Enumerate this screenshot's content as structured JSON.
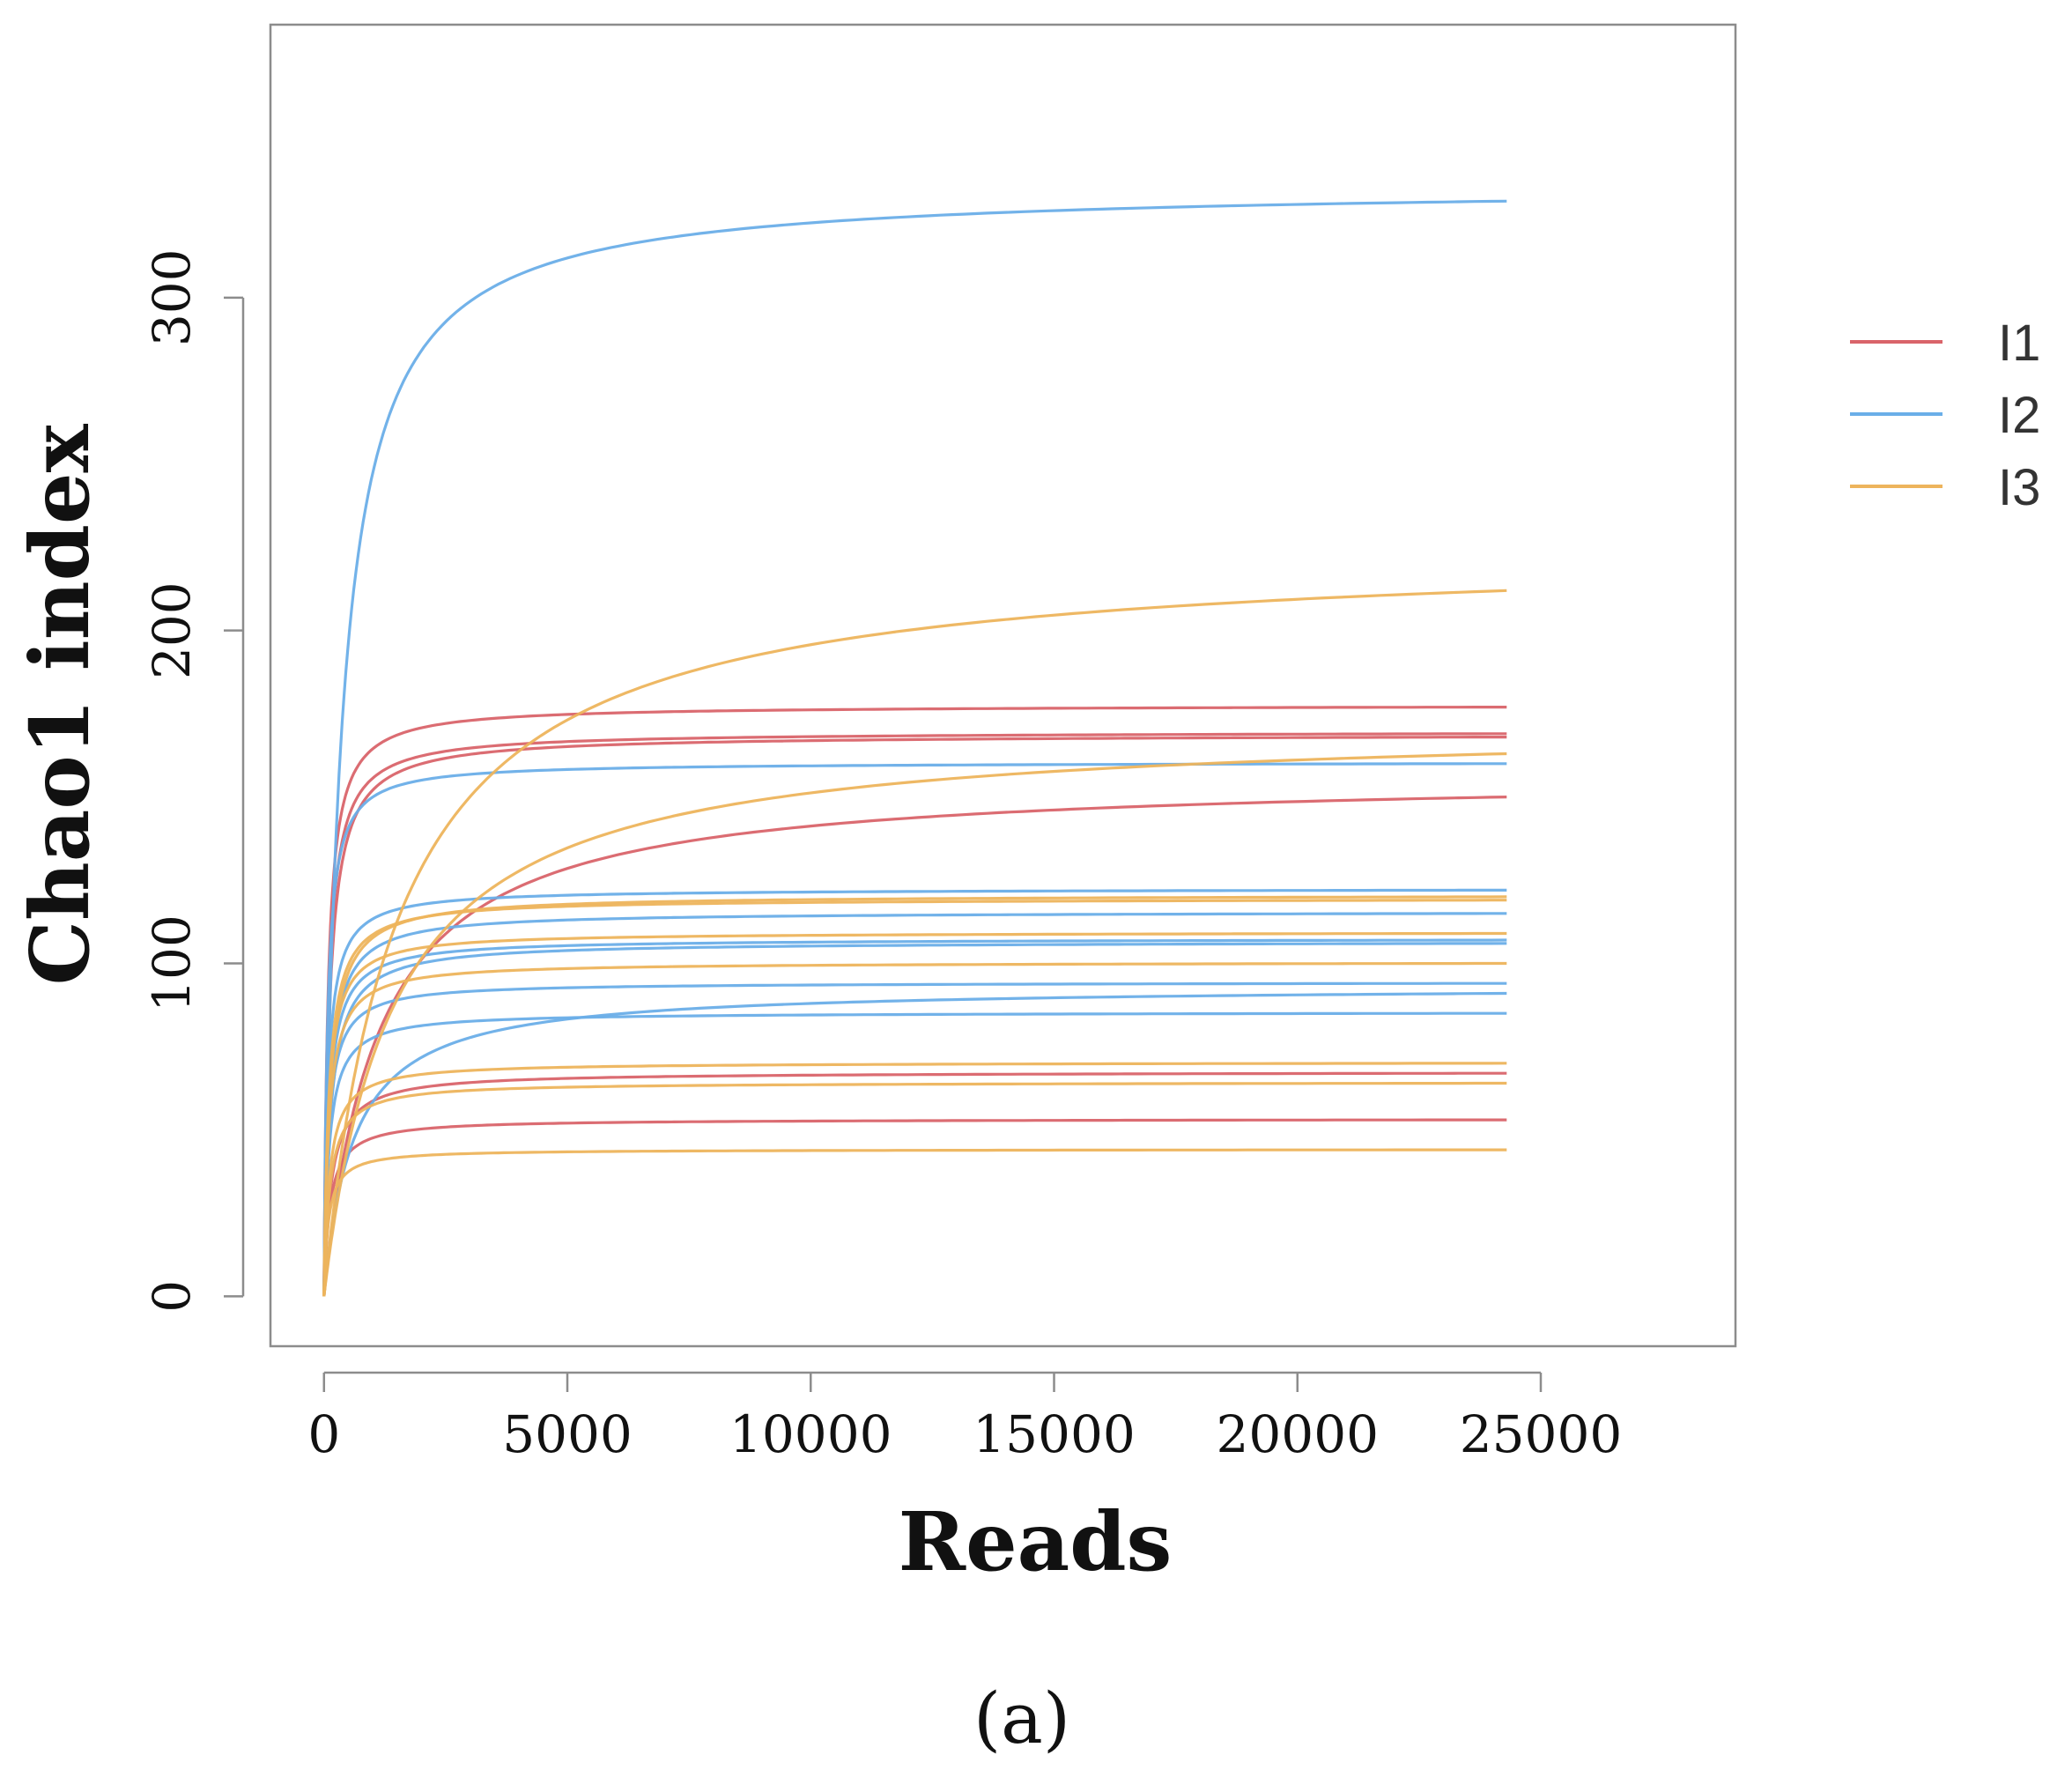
{
  "chart_data": {
    "type": "line",
    "xlabel": "Reads",
    "ylabel": "Chao1 index",
    "panel_label": "(a)",
    "xlim": [
      -1100,
      29000
    ],
    "ylim": [
      -15,
      382
    ],
    "xticks": [
      0,
      5000,
      10000,
      15000,
      20000,
      25000
    ],
    "xtick_labels": [
      "0",
      "5000",
      "10000",
      "15000",
      "20000",
      "25000"
    ],
    "yticks": [
      0,
      100,
      200,
      300
    ],
    "ytick_labels": [
      "0",
      "100",
      "200",
      "300"
    ],
    "grid": false,
    "legend_position": "right",
    "legend": [
      {
        "label": "I1",
        "color": "#d9646a"
      },
      {
        "label": "I2",
        "color": "#6aaee8"
      },
      {
        "label": "I3",
        "color": "#edb45c"
      }
    ],
    "x_end": 24300,
    "series": [
      {
        "group": "I1",
        "final_value": 177,
        "half_saturation_reads": 80
      },
      {
        "group": "I1",
        "final_value": 169,
        "half_saturation_reads": 90
      },
      {
        "group": "I1",
        "final_value": 168,
        "half_saturation_reads": 110
      },
      {
        "group": "I1",
        "final_value": 150,
        "half_saturation_reads": 1100
      },
      {
        "group": "I1",
        "final_value": 67,
        "half_saturation_reads": 150
      },
      {
        "group": "I1",
        "final_value": 53,
        "half_saturation_reads": 120
      },
      {
        "group": "I2",
        "final_value": 329,
        "half_saturation_reads": 350
      },
      {
        "group": "I2",
        "final_value": 160,
        "half_saturation_reads": 70
      },
      {
        "group": "I2",
        "final_value": 122,
        "half_saturation_reads": 80
      },
      {
        "group": "I2",
        "final_value": 115,
        "half_saturation_reads": 110
      },
      {
        "group": "I2",
        "final_value": 107,
        "half_saturation_reads": 100
      },
      {
        "group": "I2",
        "final_value": 106,
        "half_saturation_reads": 130
      },
      {
        "group": "I2",
        "final_value": 94,
        "half_saturation_reads": 90
      },
      {
        "group": "I2",
        "final_value": 91,
        "half_saturation_reads": 600
      },
      {
        "group": "I2",
        "final_value": 85,
        "half_saturation_reads": 100
      },
      {
        "group": "I3",
        "final_value": 212,
        "half_saturation_reads": 1500
      },
      {
        "group": "I3",
        "final_value": 163,
        "half_saturation_reads": 1400
      },
      {
        "group": "I3",
        "final_value": 120,
        "half_saturation_reads": 120
      },
      {
        "group": "I3",
        "final_value": 119,
        "half_saturation_reads": 100
      },
      {
        "group": "I3",
        "final_value": 109,
        "half_saturation_reads": 90
      },
      {
        "group": "I3",
        "final_value": 100,
        "half_saturation_reads": 100
      },
      {
        "group": "I3",
        "final_value": 70,
        "half_saturation_reads": 110
      },
      {
        "group": "I3",
        "final_value": 64,
        "half_saturation_reads": 120
      },
      {
        "group": "I3",
        "final_value": 44,
        "half_saturation_reads": 90
      }
    ]
  }
}
